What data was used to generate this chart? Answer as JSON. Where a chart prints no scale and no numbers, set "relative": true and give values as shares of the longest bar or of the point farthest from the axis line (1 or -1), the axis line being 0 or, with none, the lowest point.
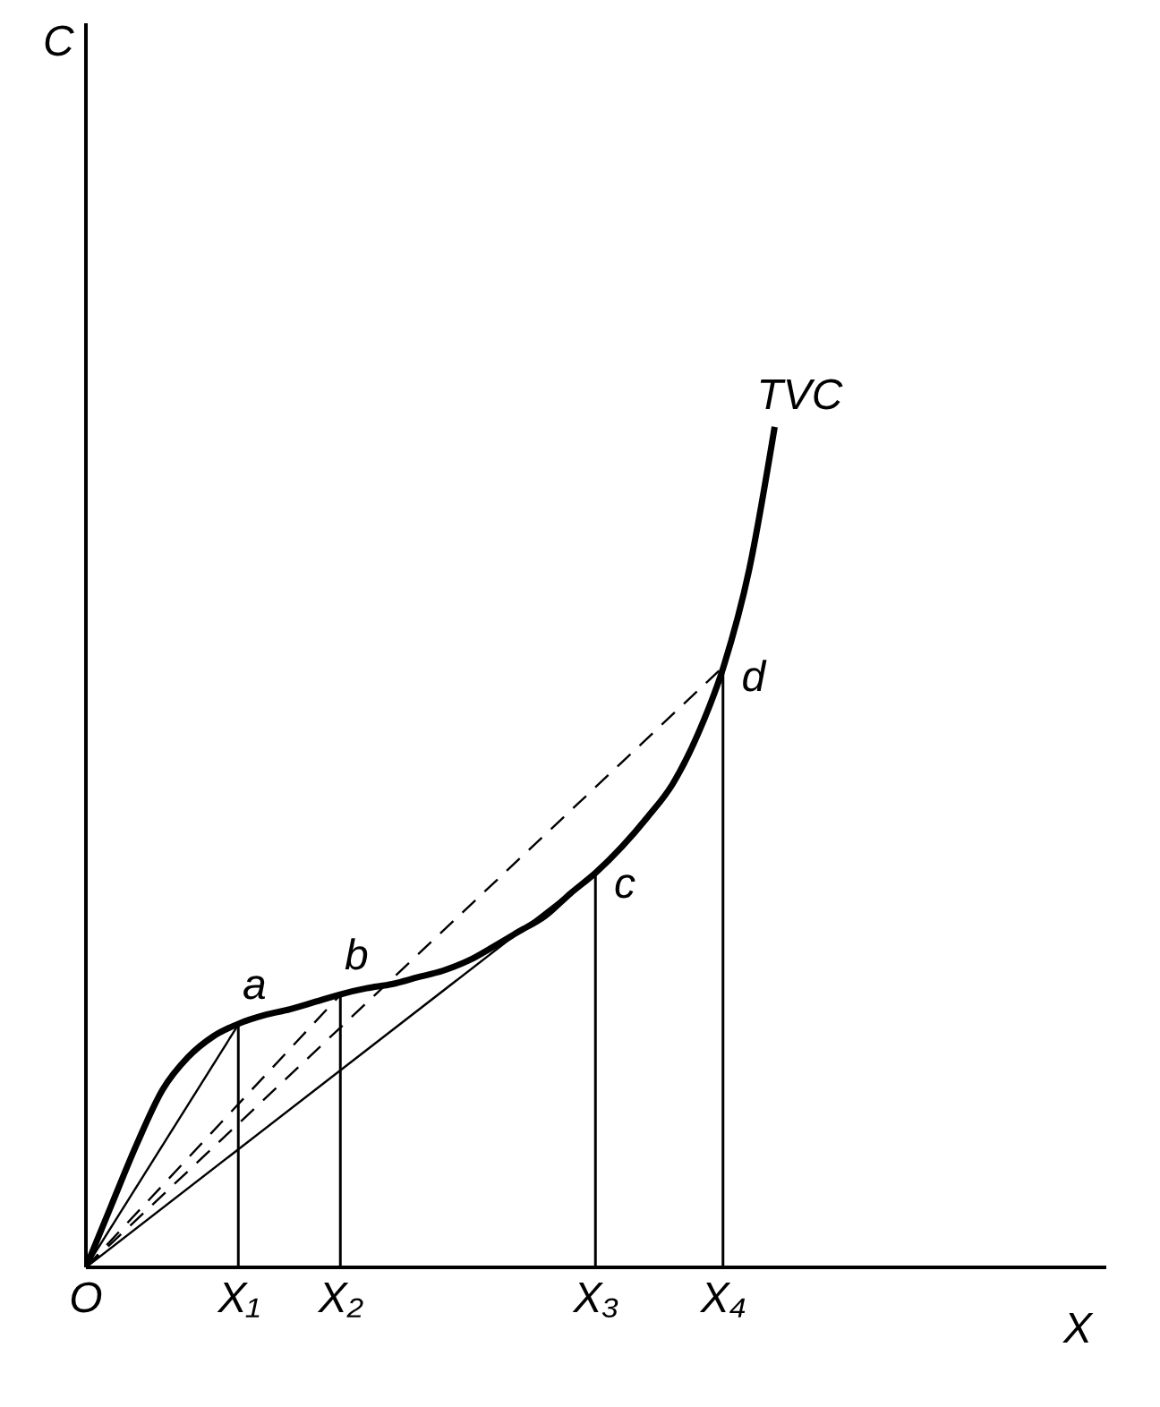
{
  "chart_data": {
    "type": "line",
    "relative": true,
    "xlabel": "X",
    "categories": [
      "O",
      null,
      null,
      null,
      null,
      null,
      "X₁",
      null,
      null,
      null,
      "X₂",
      null,
      null,
      null,
      null,
      null,
      null,
      null,
      null,
      null,
      "X₃",
      null,
      null,
      null,
      null,
      "X₄",
      null,
      null,
      null,
      null,
      null,
      null,
      null,
      null,
      null,
      null,
      null,
      null,
      null,
      null,
      null
    ],
    "series": [
      {
        "name": "TVC",
        "color": "#000000",
        "line_style": "solid",
        "values": [
          0,
          0.074,
          0.147,
          0.211,
          0.25,
          0.275,
          0.29,
          0.3,
          0.307,
          0.316,
          0.325,
          0.332,
          0.337,
          0.345,
          0.353,
          0.365,
          0.382,
          0.4,
          0.418,
          0.445,
          0.47,
          0.5,
          0.535,
          0.575,
          0.635,
          0.715,
          0.83,
          1,
          null,
          null,
          null,
          null,
          null,
          null,
          null,
          null,
          null,
          null,
          null,
          null,
          null
        ]
      },
      {
        "type": "line",
        "color": "#000000",
        "line_style": "solid",
        "x": [
          "O",
          "X₁"
        ],
        "values": [
          0,
          0.29
        ]
      },
      {
        "type": "line",
        "color": "#000000",
        "line_style": "dashed",
        "x": [
          "O",
          "X₂"
        ],
        "values": [
          0,
          0.325
        ]
      },
      {
        "type": "line",
        "color": "#000000",
        "line_style": "solid",
        "x": [
          "O",
          "X₃"
        ],
        "values": [
          0,
          0.47
        ]
      },
      {
        "type": "line",
        "color": "#000000",
        "line_style": "dashed",
        "x": [
          "O",
          "X₄"
        ],
        "values": [
          0,
          0.715
        ]
      },
      {
        "type": "bar",
        "color": "#000000",
        "x": [
          "X₁",
          "X₂",
          "X₃",
          "X₄"
        ],
        "values": [
          0.29,
          0.325,
          0.47,
          0.715
        ]
      }
    ],
    "annotations": [
      "C",
      {
        "text": "a",
        "x": "X₁",
        "y": 0.29
      },
      {
        "text": "b",
        "x": "X₂",
        "y": 0.325
      },
      {
        "text": "c",
        "x": "X₃",
        "y": 0.47
      },
      {
        "text": "d",
        "x": "X₄",
        "y": 0.715
      }
    ],
    "legend": false,
    "grid": false,
    "marker": "none"
  }
}
